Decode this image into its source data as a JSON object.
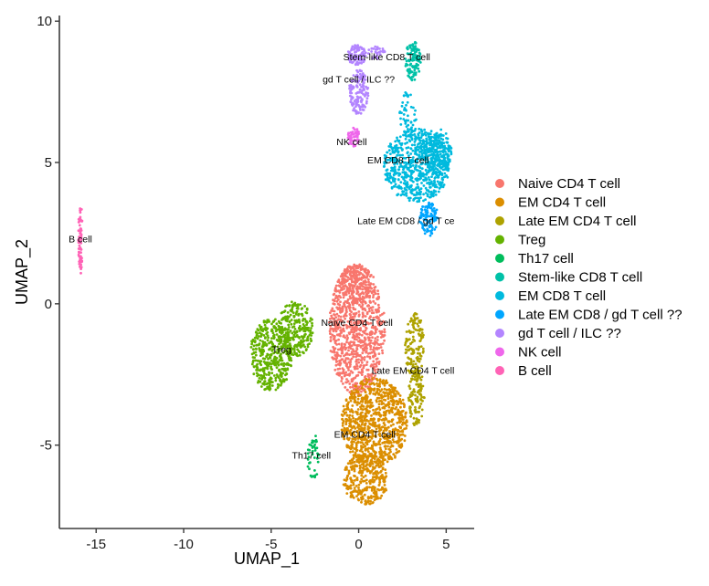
{
  "chart_data": {
    "type": "scatter",
    "title": "",
    "xlabel": "UMAP_1",
    "ylabel": "UMAP_2",
    "xlim": [
      -17.1,
      6.6
    ],
    "ylim": [
      -7.95,
      10.2
    ],
    "xticks": [
      -15,
      -10,
      -5,
      0,
      5
    ],
    "yticks": [
      -5,
      0,
      5,
      10
    ],
    "xtick_labels": [
      "-15",
      "-10",
      "-5",
      "0",
      "5"
    ],
    "ytick_labels": [
      "-5",
      "0",
      "5",
      "10"
    ],
    "grid": false,
    "legend_position": "right",
    "series": [
      {
        "name": "Naive CD4 T cell",
        "color": "#F8766D",
        "label": "Naive CD4 T cell",
        "label_at": [
          -0.1,
          -0.65
        ],
        "regions": [
          {
            "cx": -0.1,
            "cy": -0.9,
            "rx": 1.6,
            "ry": 2.3,
            "n": 900
          },
          {
            "cx": -0.2,
            "cy": 0.7,
            "rx": 0.9,
            "ry": 0.7,
            "n": 150
          }
        ]
      },
      {
        "name": "EM CD4 T cell",
        "color": "#DB8E00",
        "label": "EM CD4 T cell",
        "label_at": [
          0.35,
          -4.6
        ],
        "regions": [
          {
            "cx": 0.9,
            "cy": -4.2,
            "rx": 1.9,
            "ry": 1.6,
            "n": 900
          },
          {
            "cx": 0.4,
            "cy": -6.2,
            "rx": 1.3,
            "ry": 0.9,
            "n": 300
          }
        ]
      },
      {
        "name": "Late EM CD4 T cell",
        "color": "#AEA200",
        "label": "Late EM CD4 T cell",
        "label_at": [
          3.1,
          -2.35
        ],
        "regions": [
          {
            "cx": 3.2,
            "cy": -1.5,
            "rx": 0.55,
            "ry": 1.2,
            "n": 140
          },
          {
            "cx": 3.3,
            "cy": -3.3,
            "rx": 0.45,
            "ry": 1.1,
            "n": 120
          }
        ]
      },
      {
        "name": "Treg",
        "color": "#64B200",
        "label": "Treg",
        "label_at": [
          -4.4,
          -1.6
        ],
        "regions": [
          {
            "cx": -5.0,
            "cy": -1.8,
            "rx": 1.2,
            "ry": 1.3,
            "n": 420
          },
          {
            "cx": -3.6,
            "cy": -0.9,
            "rx": 1.0,
            "ry": 1.0,
            "n": 250
          }
        ]
      },
      {
        "name": "Th17 cell",
        "color": "#00BD5C",
        "label": "Th17 cell",
        "label_at": [
          -2.7,
          -5.35
        ],
        "regions": [
          {
            "cx": -2.6,
            "cy": -5.4,
            "rx": 0.35,
            "ry": 0.8,
            "n": 40
          }
        ]
      },
      {
        "name": "Stem-like CD8 T cell",
        "color": "#00C1A7",
        "label": "Stem-like CD8 T cell",
        "label_at": [
          1.6,
          8.75
        ],
        "regions": [
          {
            "cx": 3.1,
            "cy": 8.6,
            "rx": 0.45,
            "ry": 0.7,
            "n": 110
          }
        ]
      },
      {
        "name": "EM CD8 T cell",
        "color": "#00BADE",
        "label": "EM CD8 T cell",
        "label_at": [
          2.25,
          5.1
        ],
        "regions": [
          {
            "cx": 3.3,
            "cy": 4.9,
            "rx": 1.9,
            "ry": 1.3,
            "n": 650
          },
          {
            "cx": 4.5,
            "cy": 5.4,
            "rx": 0.8,
            "ry": 0.8,
            "n": 200
          },
          {
            "cx": 2.8,
            "cy": 6.7,
            "rx": 0.5,
            "ry": 0.8,
            "n": 50
          }
        ]
      },
      {
        "name": "Late EM CD8 / gd T cell ??",
        "color": "#00A6FF",
        "label": "Late EM CD8 / gd T ce",
        "label_at": [
          2.7,
          2.95
        ],
        "regions": [
          {
            "cx": 4.0,
            "cy": 3.0,
            "rx": 0.55,
            "ry": 0.6,
            "n": 110
          }
        ]
      },
      {
        "name": "gd T cell / ILC ??",
        "color": "#B385FF",
        "label": "gd T cell / ILC ??",
        "label_at": [
          0.0,
          7.95
        ],
        "regions": [
          {
            "cx": -0.1,
            "cy": 8.8,
            "rx": 0.55,
            "ry": 0.35,
            "n": 90
          },
          {
            "cx": 0.0,
            "cy": 7.5,
            "rx": 0.55,
            "ry": 0.8,
            "n": 140
          },
          {
            "cx": 1.0,
            "cy": 8.9,
            "rx": 0.5,
            "ry": 0.25,
            "n": 30
          }
        ]
      },
      {
        "name": "NK cell",
        "color": "#EF67EB",
        "label": "NK cell",
        "label_at": [
          -0.4,
          5.75
        ],
        "regions": [
          {
            "cx": -0.3,
            "cy": 5.9,
            "rx": 0.35,
            "ry": 0.35,
            "n": 60
          }
        ]
      },
      {
        "name": "B cell",
        "color": "#FF63B6",
        "label": "B cell",
        "label_at": [
          -15.9,
          2.3
        ],
        "regions": [
          {
            "cx": -15.9,
            "cy": 2.3,
            "rx": 0.12,
            "ry": 1.25,
            "n": 70
          }
        ]
      }
    ]
  }
}
